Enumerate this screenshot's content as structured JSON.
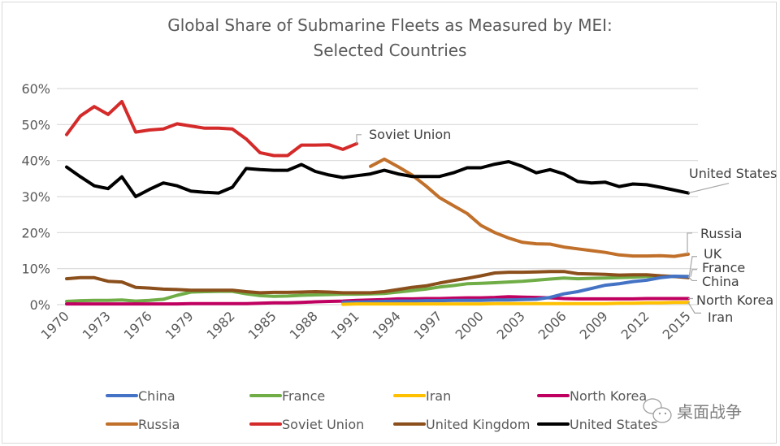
{
  "chart_data": {
    "type": "line",
    "title": "Global Share of Submarine Fleets as Measured by MEI:",
    "subtitle": "Selected Countries",
    "xlabel": "",
    "ylabel": "",
    "x_range": [
      1970,
      2015
    ],
    "ylim": [
      0,
      60
    ],
    "y_ticks": [
      "0%",
      "10%",
      "20%",
      "30%",
      "40%",
      "50%",
      "60%"
    ],
    "x_ticks": [
      "1970",
      "1973",
      "1976",
      "1979",
      "1982",
      "1985",
      "1988",
      "1991",
      "1994",
      "1997",
      "2000",
      "2003",
      "2006",
      "2009",
      "2012",
      "2015"
    ],
    "grid": true,
    "legend_position": "bottom",
    "series": [
      {
        "name": "China",
        "color": "#4472c4",
        "label": "China",
        "start": 1990,
        "values": [
          0.6,
          0.7,
          0.8,
          0.9,
          1.0,
          1.0,
          1.1,
          1.1,
          1.2,
          1.2,
          1.2,
          1.3,
          1.3,
          1.4,
          1.5,
          2.0,
          3.0,
          3.6,
          4.5,
          5.4,
          5.8,
          6.4,
          6.8,
          7.5,
          7.9,
          7.8
        ]
      },
      {
        "name": "France",
        "color": "#70ad47",
        "label": "France",
        "start": 1970,
        "values": [
          0.9,
          1.1,
          1.2,
          1.2,
          1.3,
          1.0,
          1.2,
          1.5,
          2.6,
          3.5,
          3.6,
          3.7,
          3.7,
          3.0,
          2.5,
          2.3,
          2.4,
          2.6,
          2.7,
          2.8,
          2.9,
          2.9,
          3.0,
          3.1,
          3.5,
          3.9,
          4.3,
          4.9,
          5.3,
          5.8,
          5.9,
          6.1,
          6.3,
          6.5,
          6.8,
          7.1,
          7.4,
          7.2,
          7.3,
          7.4,
          7.5,
          7.6,
          7.8,
          7.9,
          7.8,
          7.8
        ]
      },
      {
        "name": "Iran",
        "color": "#ffc000",
        "label": "Iran",
        "start": 1990,
        "values": [
          0.1,
          0.2,
          0.2,
          0.2,
          0.2,
          0.2,
          0.2,
          0.2,
          0.2,
          0.2,
          0.2,
          0.3,
          0.3,
          0.3,
          0.3,
          0.3,
          0.3,
          0.3,
          0.3,
          0.3,
          0.4,
          0.4,
          0.5,
          0.5,
          0.6,
          0.6
        ]
      },
      {
        "name": "North Korea",
        "color": "#c00060",
        "label": "North Korea",
        "start": 1970,
        "values": [
          0.2,
          0.2,
          0.2,
          0.2,
          0.2,
          0.2,
          0.2,
          0.2,
          0.2,
          0.3,
          0.3,
          0.3,
          0.3,
          0.3,
          0.4,
          0.5,
          0.5,
          0.6,
          0.8,
          0.9,
          1.0,
          1.2,
          1.3,
          1.4,
          1.6,
          1.6,
          1.7,
          1.7,
          1.8,
          1.9,
          1.9,
          2.0,
          2.2,
          2.1,
          2.0,
          1.9,
          1.7,
          1.6,
          1.6,
          1.6,
          1.6,
          1.6,
          1.7,
          1.7,
          1.7,
          1.7
        ]
      },
      {
        "name": "Russia",
        "color": "#c0702a",
        "label": "Russia",
        "start": 1992,
        "values": [
          38.4,
          40.4,
          38.3,
          36.0,
          33.0,
          29.7,
          27.5,
          25.3,
          22.0,
          20.0,
          18.5,
          17.3,
          16.9,
          16.8,
          16.0,
          15.5,
          15.0,
          14.5,
          13.8,
          13.5,
          13.5,
          13.6,
          13.4,
          14.0
        ]
      },
      {
        "name": "Soviet Union",
        "color": "#d42a2a",
        "label": "Soviet Union",
        "start": 1970,
        "values": [
          47.2,
          52.4,
          55.0,
          52.8,
          56.4,
          47.9,
          48.5,
          48.8,
          50.2,
          49.6,
          49.0,
          49.0,
          48.8,
          46.0,
          42.2,
          41.4,
          41.4,
          44.3,
          44.3,
          44.4,
          43.1,
          44.7
        ]
      },
      {
        "name": "United Kingdom",
        "color": "#8b4f1c",
        "label": "UK",
        "start": 1970,
        "values": [
          7.2,
          7.5,
          7.5,
          6.5,
          6.3,
          4.8,
          4.6,
          4.3,
          4.2,
          4.0,
          4.0,
          4.0,
          4.0,
          3.6,
          3.3,
          3.4,
          3.4,
          3.5,
          3.6,
          3.5,
          3.3,
          3.3,
          3.3,
          3.6,
          4.2,
          4.8,
          5.2,
          6.0,
          6.7,
          7.3,
          8.0,
          8.8,
          9.0,
          9.0,
          9.1,
          9.2,
          9.2,
          8.6,
          8.5,
          8.4,
          8.2,
          8.3,
          8.3,
          8.0,
          7.8,
          7.5
        ]
      },
      {
        "name": "United States",
        "color": "#000000",
        "label": "United States",
        "start": 1970,
        "values": [
          38.2,
          35.5,
          33.0,
          32.2,
          35.5,
          30.0,
          32.0,
          33.8,
          33.0,
          31.5,
          31.2,
          31.0,
          32.6,
          37.8,
          37.5,
          37.3,
          37.3,
          38.9,
          37.0,
          36.0,
          35.3,
          35.8,
          36.3,
          37.3,
          36.3,
          35.6,
          35.6,
          35.6,
          36.6,
          38.0,
          38.0,
          39.0,
          39.7,
          38.4,
          36.6,
          37.5,
          36.3,
          34.2,
          33.8,
          34.0,
          32.8,
          33.5,
          33.3,
          32.6,
          31.8,
          31.0
        ]
      }
    ],
    "annotations": [
      "Soviet Union",
      "United States",
      "Russia",
      "UK",
      "France",
      "China",
      "North Korea",
      "Iran"
    ],
    "legend": [
      "China",
      "France",
      "Iran",
      "North Korea",
      "Russia",
      "Soviet Union",
      "United Kingdom",
      "United States"
    ]
  },
  "watermark": {
    "text": "桌面战争",
    "icon": "wechat-icon"
  }
}
